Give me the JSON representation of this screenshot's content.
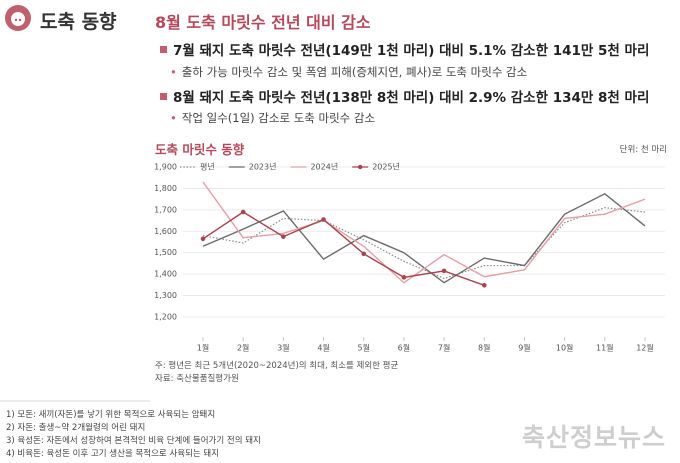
{
  "header": {
    "title": "도축 동향"
  },
  "heading": "8월 도축 마릿수 전년 대비 감소",
  "points": [
    {
      "text": "7월 돼지 도축 마릿수 전년(149만 1천 마리) 대비 5.1% 감소한 141만 5천 마리",
      "sub": "출하 가능 마릿수 감소 및 폭염 피해(증체지연, 폐사)로 도축 마릿수 감소"
    },
    {
      "text": "8월 돼지 도축 마릿수 전년(138만 8천 마리) 대비 2.9% 감소한 134만 8천 마리",
      "sub": "작업 일수(1일) 감소로 도축 마릿수 감소"
    }
  ],
  "chart_data": {
    "type": "line",
    "title": "도축 마릿수 동향",
    "unit": "단위: 천 마리",
    "categories": [
      "1월",
      "2월",
      "3월",
      "4월",
      "5월",
      "6월",
      "7월",
      "8월",
      "9월",
      "10월",
      "11월",
      "12월"
    ],
    "series": [
      {
        "name": "평년",
        "color": "#8a8a8a",
        "line_style": "dotted",
        "values": [
          1580,
          1545,
          1660,
          1650,
          1560,
          1460,
          1380,
          1440,
          1440,
          1640,
          1710,
          1690
        ]
      },
      {
        "name": "2023년",
        "color": "#6b6b6b",
        "line_style": "solid",
        "values": [
          1530,
          1610,
          1695,
          1470,
          1580,
          1500,
          1360,
          1475,
          1440,
          1680,
          1775,
          1625
        ]
      },
      {
        "name": "2024년",
        "color": "#e3a0a6",
        "line_style": "solid",
        "values": [
          1830,
          1570,
          1590,
          1650,
          1530,
          1360,
          1491,
          1388,
          1420,
          1660,
          1680,
          1750
        ]
      },
      {
        "name": "2025년",
        "color": "#a8434f",
        "line_style": "solid",
        "markers": true,
        "values": [
          1565,
          1690,
          1575,
          1655,
          1495,
          1385,
          1415,
          1348,
          null,
          null,
          null,
          null
        ]
      }
    ],
    "ylim": [
      1200,
      1900
    ],
    "yticks": [
      {
        "value": 1200,
        "label": "1,200"
      },
      {
        "value": 1300,
        "label": "1,300"
      },
      {
        "value": 1400,
        "label": "1,400"
      },
      {
        "value": 1500,
        "label": "1,500"
      },
      {
        "value": 1600,
        "label": "1,600"
      },
      {
        "value": 1700,
        "label": "1,700"
      },
      {
        "value": 1800,
        "label": "1,800"
      },
      {
        "value": 1900,
        "label": "1,900"
      }
    ],
    "grid": true,
    "legend": "top-left",
    "note": "주: 평년은 최근 5개년(2020~2024년)의 최대, 최소를 제외한 평균",
    "source": "자료: 축산물품질평가원"
  },
  "footnotes": [
    "1) 모돈: 새끼(자돈)를 낳기 위한 목적으로 사육되는 암퇘지",
    "2) 자돈: 출생~약 2개월령의 어린 돼지",
    "3) 육성돈: 자돈에서 성장하여 본격적인 비육 단계에 들어가기 전의 돼지",
    "4) 비육돈: 육성돈 이후 고기 생산을 목적으로 사육되는 돼지"
  ],
  "watermark": "축산정보뉴스"
}
